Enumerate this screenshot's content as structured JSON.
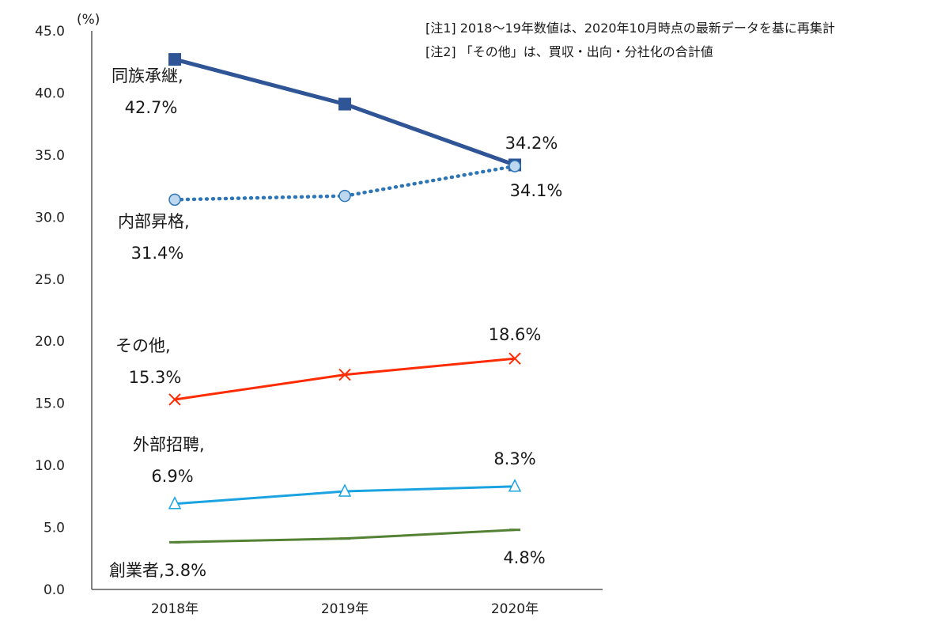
{
  "chart_data": {
    "type": "line",
    "ylabel": "(%)",
    "ylim": [
      0,
      45
    ],
    "yticks": [
      "0.0",
      "5.0",
      "10.0",
      "15.0",
      "20.0",
      "25.0",
      "30.0",
      "35.0",
      "40.0",
      "45.0"
    ],
    "categories": [
      "2018年",
      "2019年",
      "2020年"
    ],
    "series": [
      {
        "name": "同族承継",
        "values": [
          42.7,
          39.1,
          34.2
        ],
        "color": "#2f5597",
        "marker": "square",
        "style": "solid",
        "labels": [
          {
            "text": "同族承継,",
            "sub": "42.7%"
          },
          null,
          {
            "text": "34.2%"
          }
        ]
      },
      {
        "name": "内部昇格",
        "values": [
          31.4,
          31.7,
          34.1
        ],
        "color": "#2e75b6",
        "marker": "circle",
        "style": "dotted",
        "labels": [
          {
            "text": "内部昇格,",
            "sub": "31.4%"
          },
          null,
          {
            "text": "34.1%"
          }
        ]
      },
      {
        "name": "その他",
        "values": [
          15.3,
          17.3,
          18.6
        ],
        "color": "#ff2b00",
        "marker": "x",
        "style": "solid",
        "labels": [
          {
            "text": "その他,",
            "sub": "15.3%"
          },
          null,
          {
            "text": "18.6%"
          }
        ]
      },
      {
        "name": "外部招聘",
        "values": [
          6.9,
          7.9,
          8.3
        ],
        "color": "#1aa3e0",
        "marker": "triangle",
        "style": "solid",
        "labels": [
          {
            "text": "外部招聘,",
            "sub": "6.9%"
          },
          null,
          {
            "text": "8.3%"
          }
        ]
      },
      {
        "name": "創業者",
        "values": [
          3.8,
          4.1,
          4.8
        ],
        "color": "#548235",
        "marker": "dash",
        "style": "solid",
        "labels": [
          {
            "text": "創業者,3.8%"
          },
          null,
          {
            "text": "4.8%"
          }
        ]
      }
    ]
  },
  "notes": {
    "note1": "[注1] 2018～19年数値は、2020年10月時点の最新データを基に再集計",
    "note2": "[注2] 「その他」は、買収・出向・分社化の合計値"
  }
}
